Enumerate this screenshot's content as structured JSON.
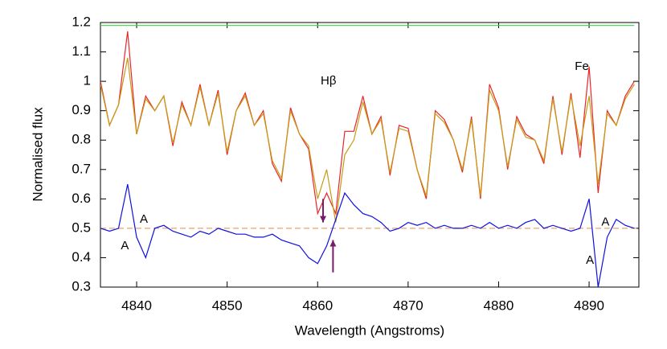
{
  "chart_data": {
    "type": "line",
    "x_label": "Wavelength (Angstroms)",
    "y_label": "Normalised flux",
    "xlim": [
      4836,
      4895.5
    ],
    "ylim": [
      0.3,
      1.2
    ],
    "xticks": [
      4840,
      4850,
      4860,
      4870,
      4880,
      4890
    ],
    "yticks": [
      0.3,
      0.4,
      0.5,
      0.6,
      0.7,
      0.8,
      0.9,
      1,
      1.1,
      1.2
    ],
    "x": [
      4836,
      4837,
      4838,
      4839,
      4840,
      4841,
      4842,
      4843,
      4844,
      4845,
      4846,
      4847,
      4848,
      4849,
      4850,
      4851,
      4852,
      4853,
      4854,
      4855,
      4856,
      4857,
      4858,
      4859,
      4860,
      4861,
      4862,
      4863,
      4864,
      4865,
      4866,
      4867,
      4868,
      4869,
      4870,
      4871,
      4872,
      4873,
      4874,
      4875,
      4876,
      4877,
      4878,
      4879,
      4880,
      4881,
      4882,
      4883,
      4884,
      4885,
      4886,
      4887,
      4888,
      4889,
      4890,
      4891,
      4892,
      4893,
      4894,
      4895
    ],
    "series": [
      {
        "color": "#33dd33",
        "values": [
          1.19,
          1.19,
          1.19,
          1.19,
          1.19,
          1.19,
          1.19,
          1.19,
          1.19,
          1.19,
          1.19,
          1.19,
          1.19,
          1.19,
          1.19,
          1.19,
          1.19,
          1.19,
          1.19,
          1.19,
          1.19,
          1.19,
          1.19,
          1.19,
          1.19,
          1.19,
          1.19,
          1.19,
          1.19,
          1.19,
          1.19,
          1.19,
          1.19,
          1.19,
          1.19,
          1.19,
          1.19,
          1.19,
          1.19,
          1.19,
          1.19,
          1.19,
          1.19,
          1.19,
          1.19,
          1.19,
          1.19,
          1.19,
          1.19,
          1.19,
          1.19,
          1.19,
          1.19,
          1.19,
          1.19,
          1.19,
          1.19,
          1.19,
          1.19,
          1.19
        ]
      },
      {
        "color": "#e8262a",
        "values": [
          1.0,
          0.85,
          0.92,
          1.17,
          0.82,
          0.95,
          0.9,
          0.95,
          0.78,
          0.93,
          0.85,
          0.99,
          0.85,
          0.97,
          0.75,
          0.9,
          0.96,
          0.85,
          0.9,
          0.72,
          0.66,
          0.91,
          0.82,
          0.77,
          0.55,
          0.62,
          0.55,
          0.83,
          0.83,
          0.95,
          0.82,
          0.88,
          0.68,
          0.85,
          0.84,
          0.7,
          0.6,
          0.9,
          0.87,
          0.8,
          0.69,
          0.88,
          0.6,
          0.99,
          0.91,
          0.7,
          0.88,
          0.82,
          0.8,
          0.72,
          0.95,
          0.75,
          0.96,
          0.74,
          1.05,
          0.62,
          0.9,
          0.85,
          0.95,
          1.0
        ]
      },
      {
        "color": "#c89b14",
        "values": [
          0.99,
          0.85,
          0.92,
          1.08,
          0.82,
          0.94,
          0.9,
          0.95,
          0.79,
          0.92,
          0.85,
          0.98,
          0.85,
          0.96,
          0.76,
          0.9,
          0.95,
          0.85,
          0.89,
          0.73,
          0.67,
          0.9,
          0.82,
          0.78,
          0.6,
          0.7,
          0.52,
          0.75,
          0.8,
          0.93,
          0.82,
          0.87,
          0.69,
          0.84,
          0.83,
          0.7,
          0.61,
          0.89,
          0.86,
          0.8,
          0.7,
          0.87,
          0.61,
          0.97,
          0.9,
          0.71,
          0.87,
          0.81,
          0.8,
          0.73,
          0.94,
          0.76,
          0.95,
          0.78,
          0.95,
          0.65,
          0.89,
          0.85,
          0.94,
          0.99
        ]
      },
      {
        "color": "#1010e0",
        "values": [
          0.5,
          0.49,
          0.5,
          0.65,
          0.47,
          0.4,
          0.5,
          0.51,
          0.49,
          0.48,
          0.47,
          0.49,
          0.48,
          0.5,
          0.49,
          0.48,
          0.48,
          0.47,
          0.47,
          0.48,
          0.46,
          0.45,
          0.44,
          0.4,
          0.38,
          0.44,
          0.53,
          0.62,
          0.58,
          0.55,
          0.54,
          0.52,
          0.49,
          0.5,
          0.52,
          0.51,
          0.52,
          0.5,
          0.51,
          0.5,
          0.5,
          0.51,
          0.5,
          0.52,
          0.5,
          0.51,
          0.5,
          0.52,
          0.53,
          0.5,
          0.51,
          0.5,
          0.49,
          0.5,
          0.6,
          0.3,
          0.47,
          0.53,
          0.51,
          0.5
        ]
      }
    ],
    "reference_line": {
      "value": 0.5,
      "color": "#f0b080"
    },
    "arrows": [
      {
        "x": 4860.6,
        "from": 0.6,
        "to": 0.52
      },
      {
        "x": 4861.7,
        "from": 0.35,
        "to": 0.46
      }
    ],
    "arrow_color": "#7a1a6a",
    "annotations": [
      {
        "text": "Hβ",
        "x": 4861.2,
        "y": 1.0
      },
      {
        "text": "Fe",
        "x": 4889.2,
        "y": 1.05
      },
      {
        "text": "A",
        "x": 4838.7,
        "y": 0.44
      },
      {
        "text": "A",
        "x": 4840.8,
        "y": 0.53
      },
      {
        "text": "A",
        "x": 4890.1,
        "y": 0.39
      },
      {
        "text": "A",
        "x": 4891.8,
        "y": 0.52
      }
    ]
  }
}
